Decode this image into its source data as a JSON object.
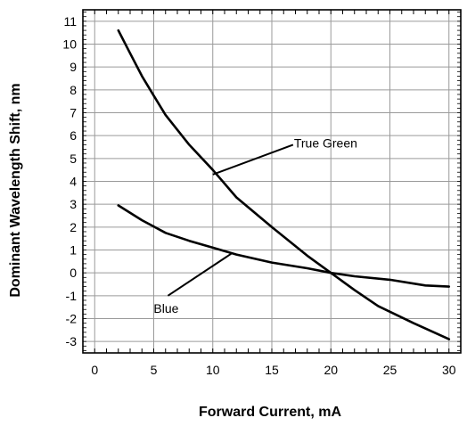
{
  "chart_data": {
    "type": "line",
    "xlabel": "Forward Current, mA",
    "ylabel": "Dominant Wavelength Shift, nm",
    "xlim": [
      -1,
      31
    ],
    "ylim": [
      -3.5,
      11.5
    ],
    "x_ticks": [
      0,
      5,
      10,
      15,
      20,
      25,
      30
    ],
    "y_ticks": [
      11,
      10,
      9,
      8,
      7,
      6,
      5,
      4,
      3,
      2,
      1,
      0,
      -1,
      -2,
      -3
    ],
    "grid": true,
    "series": [
      {
        "name": "True Green",
        "points": [
          [
            2,
            10.6
          ],
          [
            3,
            9.6
          ],
          [
            4,
            8.6
          ],
          [
            5,
            7.75
          ],
          [
            6,
            6.9
          ],
          [
            8,
            5.6
          ],
          [
            10,
            4.5
          ],
          [
            12,
            3.3
          ],
          [
            15,
            2.0
          ],
          [
            18,
            0.75
          ],
          [
            20,
            0.0
          ],
          [
            22,
            -0.75
          ],
          [
            24,
            -1.45
          ],
          [
            27,
            -2.2
          ],
          [
            30,
            -2.9
          ]
        ]
      },
      {
        "name": "Blue",
        "points": [
          [
            2,
            2.95
          ],
          [
            4,
            2.3
          ],
          [
            6,
            1.75
          ],
          [
            8,
            1.4
          ],
          [
            10,
            1.1
          ],
          [
            12,
            0.8
          ],
          [
            15,
            0.45
          ],
          [
            18,
            0.2
          ],
          [
            20,
            0.0
          ],
          [
            22,
            -0.15
          ],
          [
            25,
            -0.3
          ],
          [
            28,
            -0.55
          ],
          [
            30,
            -0.6
          ]
        ]
      }
    ],
    "annotations": [
      {
        "text": "True Green",
        "label_at": [
          16.8,
          5.6
        ],
        "points_to": [
          10,
          4.3
        ]
      },
      {
        "text": "Blue",
        "label_at": [
          6.2,
          -1.0
        ],
        "points_to": [
          11.6,
          0.85
        ]
      }
    ]
  }
}
